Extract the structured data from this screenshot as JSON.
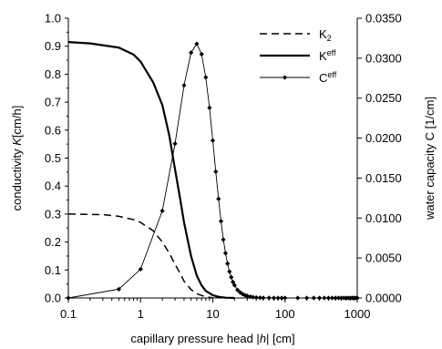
{
  "chart_data": {
    "type": "line",
    "x_scale": "log",
    "xlim": [
      0.1,
      1000
    ],
    "ylim_left": [
      0,
      1.0
    ],
    "ylim_right": [
      0,
      0.035
    ],
    "xlabel_parts": [
      "capillary pressure head |",
      "h",
      "| [cm]"
    ],
    "ylabel_left_parts": [
      "conductivity ",
      "K",
      "[cm/h]"
    ],
    "ylabel_right": "water capacity C [1/cm]",
    "x_tick_labels": [
      "0.1",
      "1",
      "10",
      "100",
      "1000"
    ],
    "y_left_tick_labels": [
      "0.0",
      "0.1",
      "0.2",
      "0.3",
      "0.4",
      "0.5",
      "0.6",
      "0.7",
      "0.8",
      "0.9",
      "1.0"
    ],
    "y_right_tick_labels": [
      "0.0000",
      "0.0050",
      "0.0100",
      "0.0150",
      "0.0200",
      "0.0250",
      "0.0300",
      "0.0350"
    ],
    "legend_placement": "top-right",
    "legend": [
      {
        "base": "K",
        "sub": "2",
        "sup": ""
      },
      {
        "base": "K",
        "sub": "",
        "sup": "eff"
      },
      {
        "base": "C",
        "sub": "",
        "sup": "eff"
      }
    ],
    "series": [
      {
        "key": "k2",
        "axis": "left",
        "style": "dashed",
        "x": [
          0.1,
          0.3,
          0.5,
          0.8,
          1.0,
          1.5,
          2.0,
          2.5,
          3.0,
          3.5,
          4.0,
          5.0,
          6.0,
          8.0,
          10.0
        ],
        "y": [
          0.3,
          0.298,
          0.292,
          0.28,
          0.27,
          0.24,
          0.2,
          0.16,
          0.12,
          0.09,
          0.06,
          0.03,
          0.015,
          0.004,
          0.001
        ]
      },
      {
        "key": "keff",
        "axis": "left",
        "style": "solid",
        "x": [
          0.1,
          0.2,
          0.5,
          0.8,
          1.0,
          1.5,
          2.0,
          2.5,
          3.0,
          3.5,
          4.0,
          5.0,
          6.0,
          7.0,
          8.0,
          10.0,
          12.0,
          15.0,
          20.0
        ],
        "y": [
          0.915,
          0.91,
          0.895,
          0.87,
          0.845,
          0.77,
          0.69,
          0.58,
          0.46,
          0.36,
          0.27,
          0.15,
          0.08,
          0.045,
          0.025,
          0.01,
          0.004,
          0.001,
          0.0
        ]
      },
      {
        "key": "ceff",
        "axis": "right",
        "style": "solid-markers",
        "x": [
          0.1,
          0.5,
          1.0,
          2.0,
          3.0,
          4.0,
          5.0,
          6.0,
          7.0,
          8.0,
          9.0,
          10.0,
          11.0,
          12.0,
          13.0,
          14.0,
          15.0,
          16.0,
          17.0,
          18.0,
          19.0,
          20.0,
          22.0,
          24.0,
          26.0,
          28.0,
          30.0,
          33.0,
          36.0,
          40.0,
          45.0,
          50.0,
          60.0,
          70.0,
          80.0,
          90.0,
          100.0,
          150.0,
          200.0,
          250.0,
          300.0,
          350.0,
          400.0,
          450.0,
          500.0,
          550.0,
          600.0,
          650.0,
          700.0,
          750.0,
          800.0,
          850.0,
          900.0,
          950.0,
          1000.0
        ],
        "y": [
          0.0,
          0.0011,
          0.0036,
          0.0109,
          0.0193,
          0.0266,
          0.0307,
          0.0318,
          0.0305,
          0.0276,
          0.0238,
          0.0197,
          0.0158,
          0.0124,
          0.0096,
          0.0073,
          0.0056,
          0.0043,
          0.0033,
          0.0026,
          0.002,
          0.0016,
          0.001,
          0.00068,
          0.00047,
          0.00034,
          0.00026,
          0.00016,
          0.0001,
          6e-05,
          3e-05,
          2e-05,
          1e-05,
          0.0,
          0.0,
          0.0,
          0.0,
          0.0,
          0.0,
          0.0,
          0.0,
          0.0,
          0.0,
          0.0,
          0.0,
          0.0,
          0.0,
          0.0,
          0.0,
          0.0,
          0.0,
          0.0,
          0.0,
          0.0,
          0.0
        ]
      }
    ]
  }
}
